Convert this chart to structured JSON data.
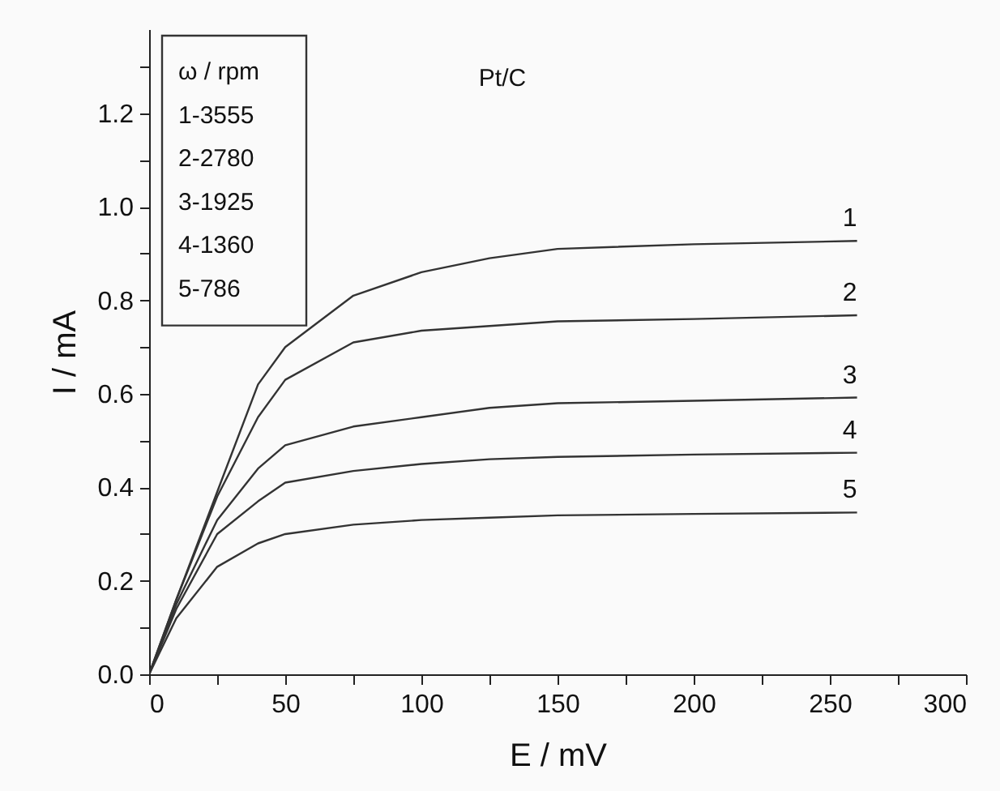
{
  "chart_data": {
    "type": "line",
    "xlabel": "E / mV",
    "ylabel": "I / mA",
    "x": [
      0,
      10,
      25,
      40,
      50,
      75,
      100,
      125,
      150,
      200,
      260
    ],
    "series": [
      {
        "name": "1",
        "color": "#333333",
        "values": [
          0,
          0.16,
          0.39,
          0.62,
          0.7,
          0.81,
          0.86,
          0.89,
          0.91,
          0.92,
          0.927
        ]
      },
      {
        "name": "2",
        "color": "#333333",
        "values": [
          0,
          0.16,
          0.38,
          0.55,
          0.63,
          0.71,
          0.735,
          0.745,
          0.755,
          0.76,
          0.768
        ]
      },
      {
        "name": "3",
        "color": "#333333",
        "values": [
          0,
          0.15,
          0.33,
          0.44,
          0.49,
          0.53,
          0.55,
          0.57,
          0.58,
          0.585,
          0.592
        ]
      },
      {
        "name": "4",
        "color": "#333333",
        "values": [
          0,
          0.14,
          0.3,
          0.37,
          0.41,
          0.435,
          0.45,
          0.46,
          0.465,
          0.47,
          0.474
        ]
      },
      {
        "name": "5",
        "color": "#333333",
        "values": [
          0,
          0.12,
          0.23,
          0.28,
          0.3,
          0.32,
          0.33,
          0.335,
          0.34,
          0.343,
          0.346
        ]
      }
    ],
    "xlim": [
      0,
      300
    ],
    "xticks": [
      0,
      {
        "value": 25,
        "label": null
      },
      50,
      {
        "value": 75,
        "label": null
      },
      100,
      {
        "value": 125,
        "label": null
      },
      150,
      {
        "value": 175,
        "label": null
      },
      200,
      {
        "value": 225,
        "label": null
      },
      250,
      {
        "value": 275,
        "label": null
      },
      300
    ],
    "ylim": [
      0,
      1.38
    ],
    "yticks": [
      {
        "value": 0,
        "label": "0.0"
      },
      {
        "value": 0.1,
        "label": null
      },
      {
        "value": 0.2,
        "label": "0.2"
      },
      {
        "value": 0.3,
        "label": null
      },
      {
        "value": 0.4,
        "label": "0.4"
      },
      {
        "value": 0.5,
        "label": null
      },
      {
        "value": 0.6,
        "label": "0.6"
      },
      {
        "value": 0.7,
        "label": null
      },
      {
        "value": 0.8,
        "label": "0.8"
      },
      {
        "value": 0.9,
        "label": null
      },
      {
        "value": 1.0,
        "label": "1.0"
      },
      {
        "value": 1.1,
        "label": null
      },
      {
        "value": 1.2,
        "label": "1.2"
      },
      {
        "value": 1.3,
        "label": null
      }
    ],
    "annotations": [
      "Pt/C",
      "ω / rpm",
      "1-3555",
      "2-2780",
      "3-1925",
      "4-1360",
      "5-786"
    ]
  }
}
